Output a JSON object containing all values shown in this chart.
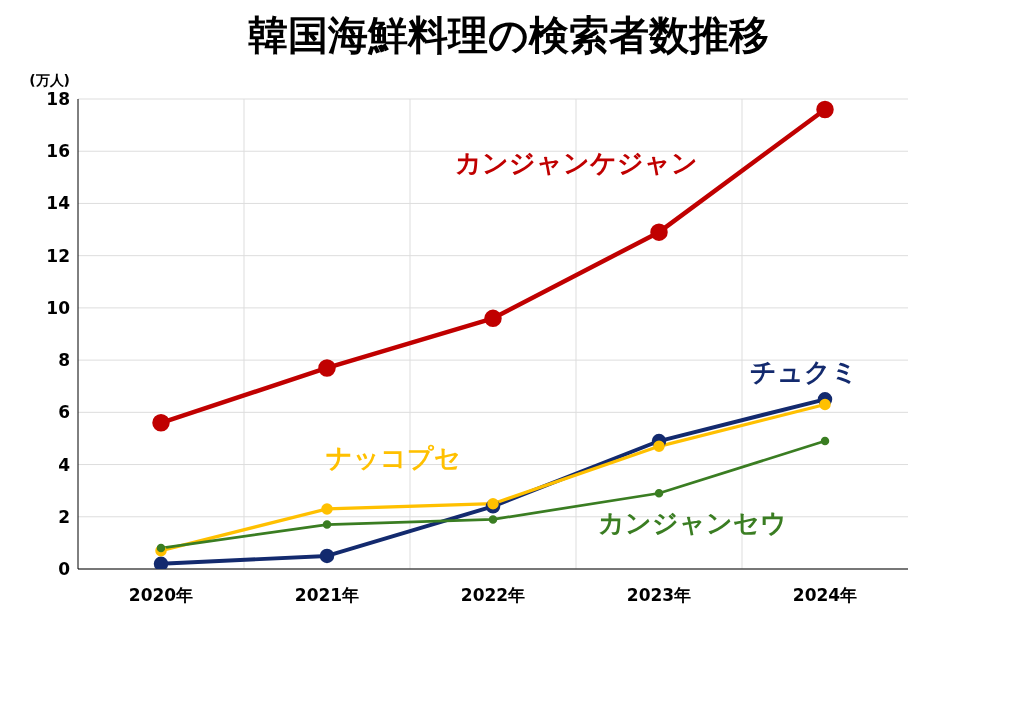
{
  "chart_data": {
    "type": "line",
    "title": "韓国海鮮料理の検索者数推移",
    "ylabel": "(万人)",
    "categories": [
      "2020年",
      "2021年",
      "2022年",
      "2023年",
      "2024年"
    ],
    "series": [
      {
        "name": "カンジャンケジャン",
        "color": "#c00000",
        "values": [
          5.6,
          7.7,
          9.6,
          12.9,
          17.6
        ]
      },
      {
        "name": "チュクミ",
        "color": "#132a6e",
        "values": [
          0.2,
          0.5,
          2.4,
          4.9,
          6.5
        ]
      },
      {
        "name": "ナッコプセ",
        "color": "#ffc000",
        "values": [
          0.7,
          2.3,
          2.5,
          4.7,
          6.3
        ]
      },
      {
        "name": "カンジャンセウ",
        "color": "#3a7d22",
        "values": [
          0.8,
          1.7,
          1.9,
          2.9,
          4.9
        ]
      }
    ],
    "ylim": [
      0,
      18
    ],
    "yticks": [
      0,
      2,
      4,
      6,
      8,
      10,
      12,
      14,
      16,
      18
    ],
    "grid": true,
    "legend": false,
    "marker": "circle",
    "line_style": "solid"
  }
}
